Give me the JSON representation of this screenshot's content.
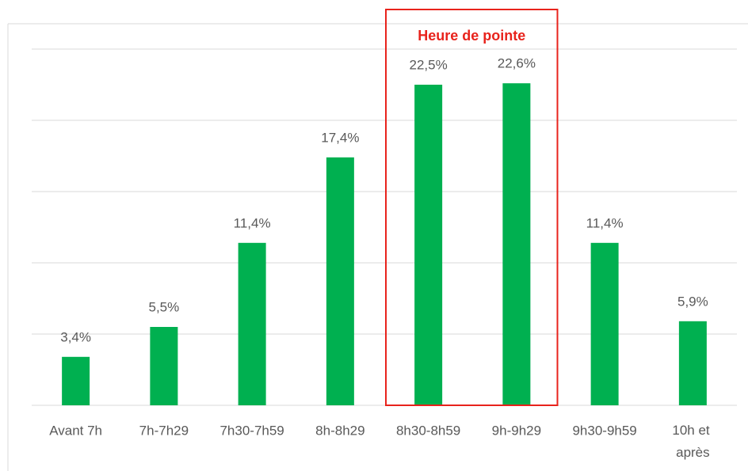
{
  "chart_data": {
    "type": "bar",
    "categories": [
      "Avant 7h",
      "7h-7h29",
      "7h30-7h59",
      "8h-8h29",
      "8h30-8h59",
      "9h-9h29",
      "9h30-9h59",
      "10h et après"
    ],
    "values": [
      3.4,
      5.5,
      11.4,
      17.4,
      22.5,
      22.6,
      11.4,
      5.9
    ],
    "value_labels": [
      "3,4%",
      "5,5%",
      "11,4%",
      "17,4%",
      "22,5%",
      "22,6%",
      "11,4%",
      "5,9%"
    ],
    "color": "#00b050",
    "ylim": [
      0,
      25
    ],
    "yticks": [
      0,
      5,
      10,
      15,
      20,
      25
    ],
    "grid": true,
    "annotation": {
      "text": "Heure de pointe",
      "from": "8h30-8h59",
      "to": "9h-9h29",
      "color": "#e8231c"
    }
  }
}
